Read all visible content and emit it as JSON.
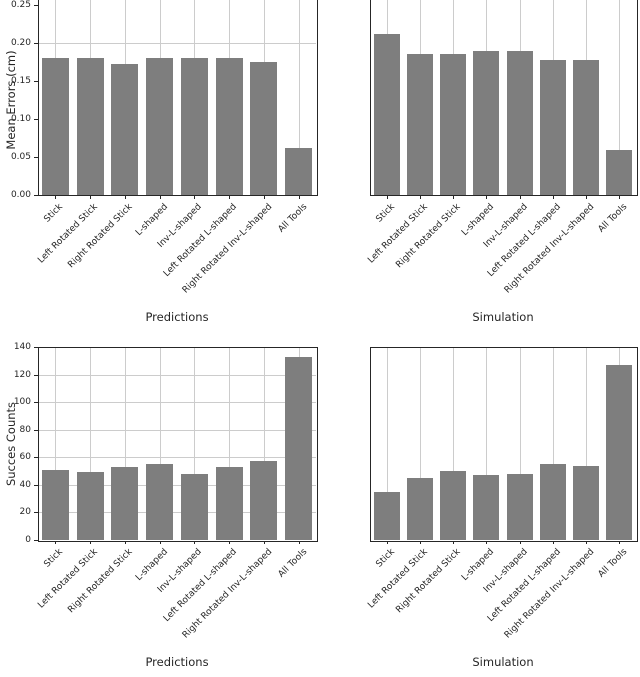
{
  "figure": {
    "description": "2x2 grid of gray bar charts comparing Predictions vs Simulation",
    "colors": {
      "bar": "#7e7e7e",
      "grid": "#cccccc",
      "spine": "#262626",
      "text": "#262626",
      "background": "#ffffff"
    }
  },
  "chart_data": [
    {
      "type": "bar",
      "panel": "top-left",
      "xlabel": "Predictions",
      "ylabel": "Mean Errors (cm)",
      "categories": [
        "Stick",
        "Left Rotated Stick",
        "Right Rotated Stick",
        "L-shaped",
        "Inv-L-shaped",
        "Left Rotated L-shaped",
        "Right Rotated Inv-L-shaped",
        "All Tools"
      ],
      "values": [
        0.18,
        0.18,
        0.173,
        0.18,
        0.18,
        0.18,
        0.175,
        0.062
      ],
      "ylim": [
        0,
        0.25
      ],
      "yticks": [
        "0.00",
        "0.05",
        "0.10",
        "0.15",
        "0.20",
        "0.25"
      ],
      "ygrid_values": [
        0.2
      ],
      "xgrid": true,
      "legend": "none"
    },
    {
      "type": "bar",
      "panel": "top-right",
      "xlabel": "Simulation",
      "ylabel": "",
      "categories": [
        "Stick",
        "Left Rotated Stick",
        "Right Rotated Stick",
        "L-shaped",
        "Inv-L-shaped",
        "Left Rotated L-shaped",
        "Right Rotated Inv-L-shaped",
        "All Tools"
      ],
      "values": [
        0.212,
        0.185,
        0.185,
        0.189,
        0.189,
        0.177,
        0.178,
        0.059
      ],
      "ylim": [
        0,
        0.25
      ],
      "yticks": [],
      "ygrid_values": [],
      "xgrid": true,
      "legend": "none"
    },
    {
      "type": "bar",
      "panel": "bottom-left",
      "xlabel": "Predictions",
      "ylabel": "Succes Counts",
      "categories": [
        "Stick",
        "Left Rotated Stick",
        "Right Rotated Stick",
        "L-shaped",
        "Inv-L-shaped",
        "Left Rotated L-shaped",
        "Right Rotated Inv-L-shaped",
        "All Tools"
      ],
      "values": [
        51,
        49,
        53,
        55,
        48,
        53,
        57,
        133
      ],
      "ylim": [
        0,
        140
      ],
      "yticks": [
        "0",
        "20",
        "40",
        "60",
        "80",
        "100",
        "120",
        "140"
      ],
      "ygrid_values": [
        20,
        40,
        60,
        80,
        100,
        120
      ],
      "xgrid": true,
      "legend": "none"
    },
    {
      "type": "bar",
      "panel": "bottom-right",
      "xlabel": "Simulation",
      "ylabel": "",
      "categories": [
        "Stick",
        "Left Rotated Stick",
        "Right Rotated Stick",
        "L-shaped",
        "Inv-L-shaped",
        "Left Rotated L-shaped",
        "Right Rotated Inv-L-shaped",
        "All Tools"
      ],
      "values": [
        35,
        45,
        50,
        47,
        48,
        55,
        54,
        127
      ],
      "ylim": [
        0,
        140
      ],
      "yticks": [],
      "ygrid_values": [],
      "xgrid": true,
      "legend": "none"
    }
  ]
}
